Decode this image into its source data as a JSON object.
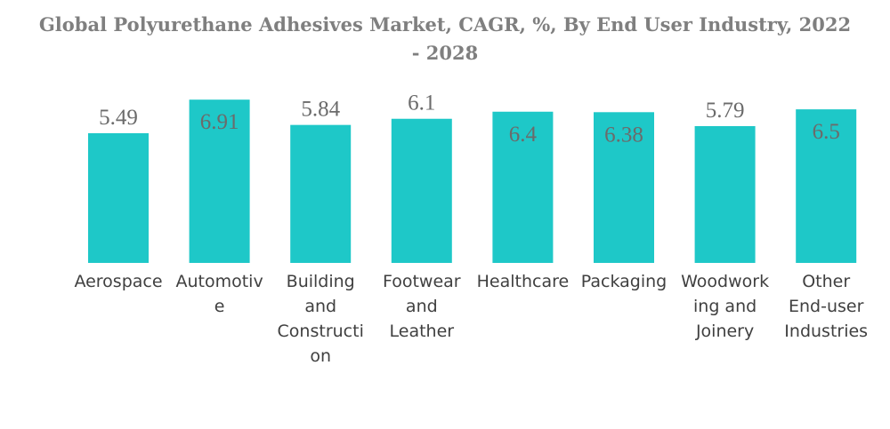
{
  "chart_data": {
    "type": "bar",
    "title": "Global Polyurethane Adhesives Market, CAGR, %, By End User Industry, 2022 - 2028",
    "categories": [
      "Aerospace",
      "Automotive",
      "Building and Construction",
      "Footwear and Leather",
      "Healthcare",
      "Packaging",
      "Woodworking and Joinery",
      "Other End-user Industries"
    ],
    "category_label_lines": [
      [
        "Aerospace"
      ],
      [
        "Automotiv",
        "e"
      ],
      [
        "Building",
        "and",
        "Constructi",
        "on"
      ],
      [
        "Footwear",
        "and",
        "Leather"
      ],
      [
        "Healthcare"
      ],
      [
        "Packaging"
      ],
      [
        "Woodwork",
        "ing and",
        "Joinery"
      ],
      [
        "Other",
        "End-user",
        "Industries"
      ]
    ],
    "series": [
      {
        "values": [
          5.49,
          6.91,
          5.84,
          6.1,
          6.4,
          6.38,
          5.79,
          6.5
        ]
      }
    ],
    "data_labels": [
      "5.49",
      "6.91",
      "5.84",
      "6.1",
      "6.4",
      "6.38",
      "5.79",
      "6.5"
    ],
    "label_inside_bar": [
      false,
      true,
      false,
      false,
      true,
      true,
      false,
      true
    ],
    "xlabel": "",
    "ylabel": "",
    "ylim": [
      0,
      7
    ],
    "grid": false,
    "legend": "none",
    "bar_color": "#1ec8c8",
    "label_color": "#6b6b6b",
    "category_color": "#404040",
    "title_color": "#7f7f7f"
  }
}
